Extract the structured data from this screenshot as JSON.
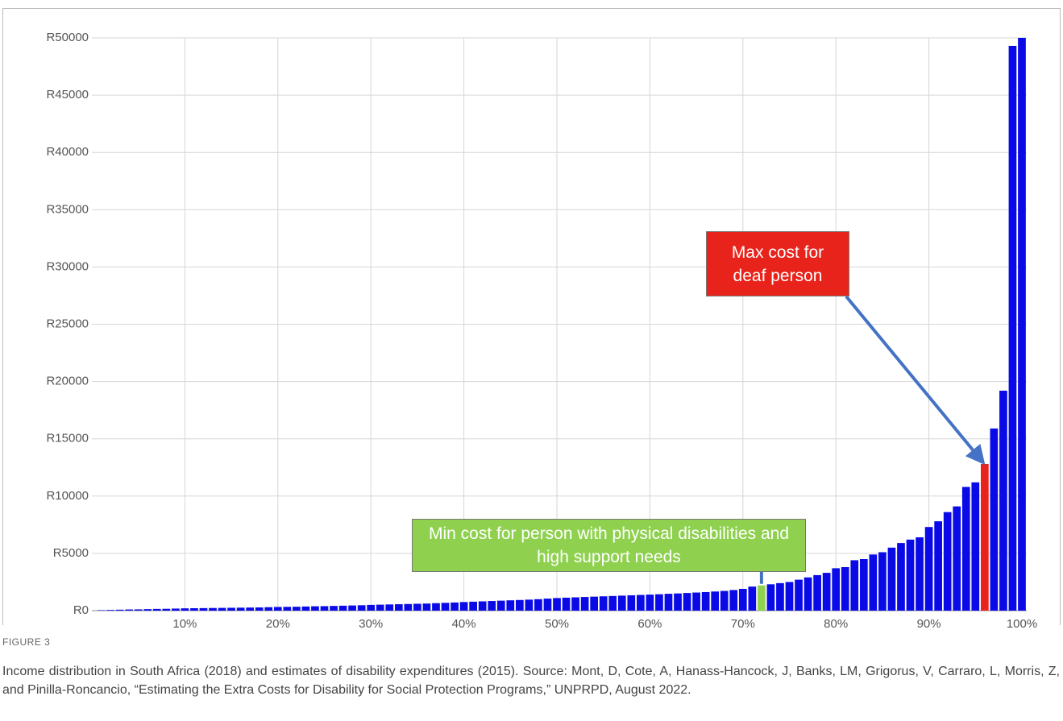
{
  "chart_data": {
    "type": "bar",
    "x": [
      1,
      2,
      3,
      4,
      5,
      6,
      7,
      8,
      9,
      10,
      11,
      12,
      13,
      14,
      15,
      16,
      17,
      18,
      19,
      20,
      21,
      22,
      23,
      24,
      25,
      26,
      27,
      28,
      29,
      30,
      31,
      32,
      33,
      34,
      35,
      36,
      37,
      38,
      39,
      40,
      41,
      42,
      43,
      44,
      45,
      46,
      47,
      48,
      49,
      50,
      51,
      52,
      53,
      54,
      55,
      56,
      57,
      58,
      59,
      60,
      61,
      62,
      63,
      64,
      65,
      66,
      67,
      68,
      69,
      70,
      71,
      72,
      73,
      74,
      75,
      76,
      77,
      78,
      79,
      80,
      81,
      82,
      83,
      84,
      85,
      86,
      87,
      88,
      89,
      90,
      91,
      92,
      93,
      94,
      95,
      96,
      97,
      98,
      99,
      100
    ],
    "values": [
      40,
      60,
      80,
      100,
      110,
      130,
      150,
      160,
      180,
      200,
      210,
      220,
      230,
      240,
      250,
      260,
      270,
      280,
      300,
      320,
      330,
      340,
      360,
      380,
      390,
      410,
      430,
      450,
      470,
      500,
      520,
      540,
      560,
      580,
      600,
      620,
      650,
      680,
      710,
      750,
      780,
      810,
      840,
      870,
      900,
      930,
      960,
      1000,
      1050,
      1100,
      1130,
      1160,
      1190,
      1220,
      1250,
      1280,
      1310,
      1340,
      1370,
      1400,
      1430,
      1470,
      1500,
      1540,
      1580,
      1620,
      1670,
      1720,
      1800,
      1900,
      2100,
      2200,
      2300,
      2400,
      2500,
      2700,
      2900,
      3100,
      3300,
      3700,
      3800,
      4400,
      4500,
      4900,
      5100,
      5500,
      5900,
      6200,
      6400,
      7300,
      7800,
      8600,
      9100,
      10800,
      11200,
      12800,
      15900,
      19200,
      49300,
      50000
    ],
    "color": "#0a0ae6",
    "xlim": [
      0,
      100
    ],
    "xticks": [
      {
        "value": 10,
        "label": "10%"
      },
      {
        "value": 20,
        "label": "20%"
      },
      {
        "value": 30,
        "label": "30%"
      },
      {
        "value": 40,
        "label": "40%"
      },
      {
        "value": 50,
        "label": "50%"
      },
      {
        "value": 60,
        "label": "60%"
      },
      {
        "value": 70,
        "label": "70%"
      },
      {
        "value": 80,
        "label": "80%"
      },
      {
        "value": 90,
        "label": "90%"
      },
      {
        "value": 100,
        "label": "100%"
      }
    ],
    "ylim": [
      0,
      50000
    ],
    "yticks": [
      {
        "value": 0,
        "label": "R0"
      },
      {
        "value": 5000,
        "label": "R5000"
      },
      {
        "value": 10000,
        "label": "R10000"
      },
      {
        "value": 15000,
        "label": "R15000"
      },
      {
        "value": 20000,
        "label": "R20000"
      },
      {
        "value": 25000,
        "label": "R25000"
      },
      {
        "value": 30000,
        "label": "R30000"
      },
      {
        "value": 35000,
        "label": "R35000"
      },
      {
        "value": 40000,
        "label": "R40000"
      },
      {
        "value": 45000,
        "label": "R45000"
      },
      {
        "value": 50000,
        "label": "R50000"
      }
    ],
    "grid": true,
    "annotations": [
      {
        "text": "Max cost for deaf person",
        "x": 96,
        "color": "#e8231b"
      },
      {
        "text": "Min cost for person with physical disabilities and high support needs",
        "x": 72,
        "color": "#8fd14f"
      }
    ]
  },
  "caption": {
    "label": "FIGURE 3",
    "text": "Income distribution in South Africa (2018) and estimates of disability expenditures (2015). Source: Mont, D, Cote, A, Hanass-Hancock, J, Banks, LM, Grigorus, V, Carraro, L, Morris, Z, and Pinilla-Roncancio, “Estimating the Extra Costs for Disability for Social Protection Programs,” UNPRPD, August 2022."
  }
}
